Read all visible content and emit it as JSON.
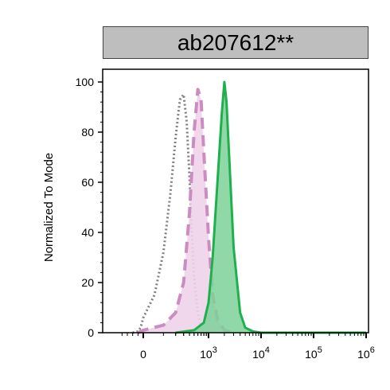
{
  "chart_data": {
    "type": "area",
    "title": "ab207612**",
    "ylabel": "Normalized To Mode",
    "xlabel": "",
    "ylim": [
      0,
      100
    ],
    "y_ticks": [
      "0",
      "20",
      "40",
      "60",
      "80",
      "100"
    ],
    "x_ticks": [
      {
        "label": "0",
        "sup": ""
      },
      {
        "label": "10",
        "sup": "3"
      },
      {
        "label": "10",
        "sup": "4"
      },
      {
        "label": "10",
        "sup": "5"
      },
      {
        "label": "10",
        "sup": "6"
      }
    ],
    "x_scale": "biexponential",
    "grid": false,
    "legend": "none",
    "series": [
      {
        "style": "dotted-unfilled",
        "color": "#7f7f7f",
        "x": [
          -200,
          -100,
          -50,
          0,
          50,
          100,
          150,
          200,
          250,
          300,
          350,
          400,
          450,
          500,
          600,
          700,
          800,
          1000
        ],
        "values": [
          0,
          0.5,
          2,
          6,
          15,
          32,
          55,
          78,
          93,
          95,
          84,
          62,
          40,
          22,
          8,
          2,
          0.5,
          0
        ]
      },
      {
        "style": "dashed-filled",
        "color": "#cc8cc0",
        "fill": "#efd3ea",
        "x": [
          -100,
          0,
          100,
          200,
          300,
          400,
          500,
          600,
          700,
          800,
          1000,
          1200,
          1500,
          2000,
          3000
        ],
        "values": [
          0,
          1,
          3,
          8,
          20,
          48,
          80,
          97,
          93,
          72,
          38,
          15,
          5,
          1,
          0
        ]
      },
      {
        "style": "solid-filled",
        "color": "#1fb04e",
        "fill": "#7ed199",
        "x": [
          200,
          500,
          800,
          1000,
          1200,
          1500,
          1800,
          2000,
          2200,
          2500,
          3000,
          4000,
          5000,
          7000,
          10000,
          20000,
          1000000
        ],
        "values": [
          0,
          1,
          4,
          12,
          30,
          62,
          88,
          100,
          92,
          68,
          34,
          8,
          2,
          0.5,
          0,
          0,
          0
        ]
      }
    ]
  }
}
